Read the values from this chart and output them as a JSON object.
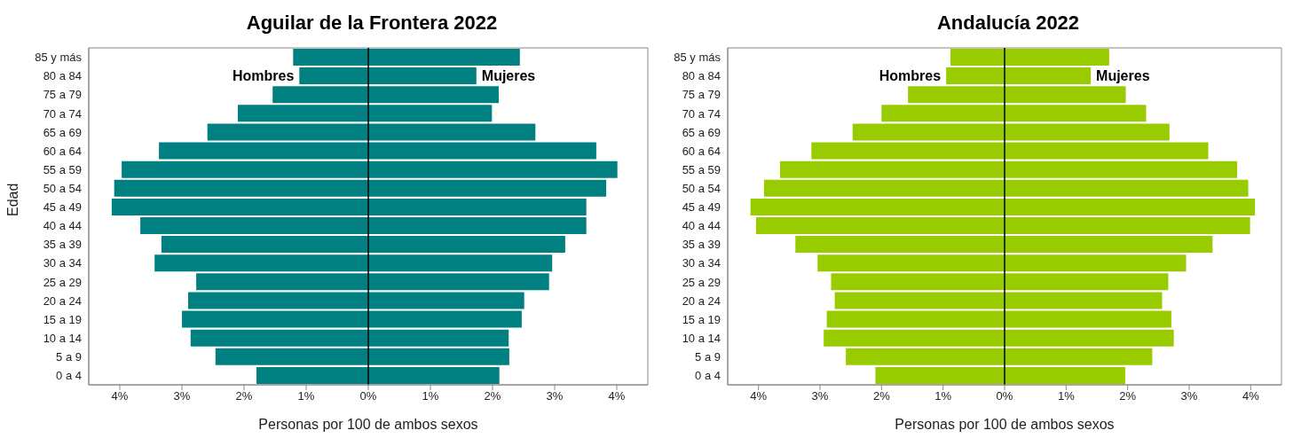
{
  "chart_data": [
    {
      "type": "bar",
      "orientation": "horizontal",
      "stacked": true,
      "title": "Aguilar de la Frontera 2022",
      "xlabel": "Personas por 100 de ambos sexos",
      "ylabel": "Edad",
      "categories": [
        "85 y más",
        "80 a 84",
        "75 a 79",
        "70 a 74",
        "65 a 69",
        "60 a 64",
        "55 a 59",
        "50 a 54",
        "45 a 49",
        "40 a 44",
        "35 a 39",
        "30 a 34",
        "25 a 29",
        "20 a 24",
        "15 a 19",
        "10 a 14",
        "5 a 9",
        "0 a 4"
      ],
      "series": [
        {
          "name": "Hombres",
          "color": "#008080",
          "values": [
            -1.21,
            -1.11,
            -1.54,
            -2.1,
            -2.59,
            -3.37,
            -3.97,
            -4.09,
            -4.13,
            -3.67,
            -3.33,
            -3.44,
            -2.77,
            -2.9,
            -3.0,
            -2.86,
            -2.46,
            -1.8
          ]
        },
        {
          "name": "Mujeres",
          "color": "#008080",
          "values": [
            2.44,
            1.74,
            2.1,
            1.99,
            2.69,
            3.67,
            4.01,
            3.83,
            3.51,
            3.51,
            3.17,
            2.96,
            2.91,
            2.51,
            2.47,
            2.26,
            2.27,
            2.11
          ]
        }
      ],
      "xlim": [
        -4.5,
        4.5
      ],
      "xticks": [
        {
          "value": -4,
          "label": "4%"
        },
        {
          "value": -3,
          "label": "3%"
        },
        {
          "value": -2,
          "label": "2%"
        },
        {
          "value": -1,
          "label": "1%"
        },
        {
          "value": 0,
          "label": "0%"
        },
        {
          "value": 1,
          "label": "1%"
        },
        {
          "value": 2,
          "label": "2%"
        },
        {
          "value": 3,
          "label": "3%"
        },
        {
          "value": 4,
          "label": "4%"
        }
      ],
      "ref_lines": [
        {
          "axis": "x",
          "value": 0,
          "color": "#000000"
        }
      ],
      "grid": false,
      "legend": false
    },
    {
      "type": "bar",
      "orientation": "horizontal",
      "stacked": true,
      "title": "Andalucía 2022",
      "xlabel": "Personas por 100 de ambos sexos",
      "categories": [
        "85 y más",
        "80 a 84",
        "75 a 79",
        "70 a 74",
        "65 a 69",
        "60 a 64",
        "55 a 59",
        "50 a 54",
        "45 a 49",
        "40 a 44",
        "35 a 39",
        "30 a 34",
        "25 a 29",
        "20 a 24",
        "15 a 19",
        "10 a 14",
        "5 a 9",
        "0 a 4"
      ],
      "series": [
        {
          "name": "Hombres",
          "color": "#99cc00",
          "values": [
            -0.88,
            -0.95,
            -1.57,
            -2.0,
            -2.47,
            -3.14,
            -3.65,
            -3.91,
            -4.13,
            -4.04,
            -3.4,
            -3.04,
            -2.82,
            -2.76,
            -2.89,
            -2.94,
            -2.58,
            -2.1
          ]
        },
        {
          "name": "Mujeres",
          "color": "#99cc00",
          "values": [
            1.7,
            1.4,
            1.97,
            2.3,
            2.68,
            3.31,
            3.78,
            3.96,
            4.07,
            3.99,
            3.38,
            2.95,
            2.66,
            2.56,
            2.71,
            2.75,
            2.4,
            1.96
          ]
        }
      ],
      "xlim": [
        -4.5,
        4.5
      ],
      "xticks": [
        {
          "value": -4,
          "label": "4%"
        },
        {
          "value": -3,
          "label": "3%"
        },
        {
          "value": -2,
          "label": "2%"
        },
        {
          "value": -1,
          "label": "1%"
        },
        {
          "value": 0,
          "label": "0%"
        },
        {
          "value": 1,
          "label": "1%"
        },
        {
          "value": 2,
          "label": "2%"
        },
        {
          "value": 3,
          "label": "3%"
        },
        {
          "value": 4,
          "label": "4%"
        }
      ],
      "ref_lines": [
        {
          "axis": "x",
          "value": 0,
          "color": "#000000"
        }
      ],
      "grid": false,
      "legend": false
    }
  ]
}
